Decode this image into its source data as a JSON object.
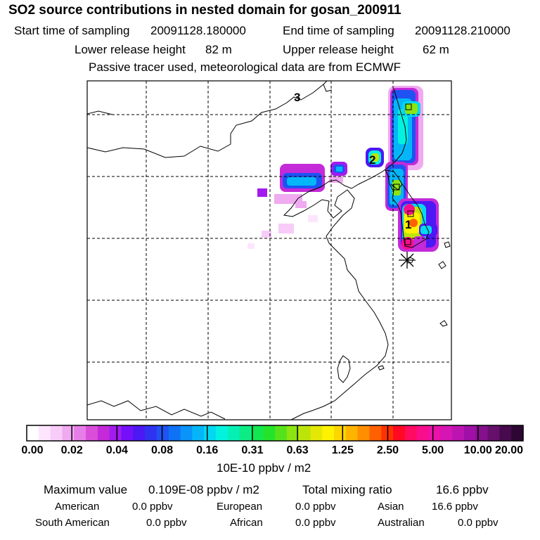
{
  "header": {
    "title": "SO2 source contributions in nested domain for gosan_200911",
    "start_label": "Start time of sampling",
    "start_value": "20091128.180000",
    "end_label": "End time of sampling",
    "end_value": "20091128.210000",
    "lower_label": "Lower release height",
    "lower_value": "82 m",
    "upper_label": "Upper release height",
    "upper_value": "62 m",
    "note": "Passive tracer used, meteorological data are from ECMWF"
  },
  "map": {
    "annotations": [
      "3",
      "2",
      "1"
    ],
    "receptor_icon": "asterisk-star-icon"
  },
  "colorbar": {
    "ticks": [
      "0.00",
      "0.02",
      "0.04",
      "0.08",
      "0.16",
      "0.31",
      "0.63",
      "1.25",
      "2.50",
      "5.00",
      "10.00",
      "20.00"
    ],
    "unit": "10E-10 ppbv / m2",
    "colors": [
      "#ffffff",
      "#fde6fd",
      "#f8ccf8",
      "#f0aaf0",
      "#e77de7",
      "#d94ed9",
      "#c42ad8",
      "#a21bef",
      "#7410fa",
      "#4c18f4",
      "#2f33f0",
      "#1f52f3",
      "#0f72f6",
      "#0a93f8",
      "#04b6f7",
      "#03d8f3",
      "#03f2e0",
      "#05f0b5",
      "#0ceb84",
      "#12e74f",
      "#24e32b",
      "#56e21a",
      "#8ce411",
      "#bde40a",
      "#e3e805",
      "#fff200",
      "#ffd500",
      "#ffb400",
      "#ff8e00",
      "#ff6000",
      "#ff3200",
      "#ff0a22",
      "#ff0b60",
      "#f80e8c",
      "#eb12a9",
      "#d516b4",
      "#bc14b1",
      "#a010a8",
      "#84108c",
      "#66106c",
      "#470a4c",
      "#2e0634"
    ]
  },
  "footer": {
    "max_label": "Maximum value",
    "max_value": "0.109E-08 ppbv / m2",
    "total_label": "Total mixing ratio",
    "total_value": "16.6 ppbv",
    "american_label": "American",
    "american_value": "0.0 ppbv",
    "european_label": "European",
    "european_value": "0.0 ppbv",
    "asian_label": "Asian",
    "asian_value": "16.6 ppbv",
    "south_american_label": "South American",
    "south_american_value": "0.0 ppbv",
    "african_label": "African",
    "african_value": "0.0 ppbv",
    "australian_label": "Australian",
    "australian_value": "0.0 ppbv"
  }
}
